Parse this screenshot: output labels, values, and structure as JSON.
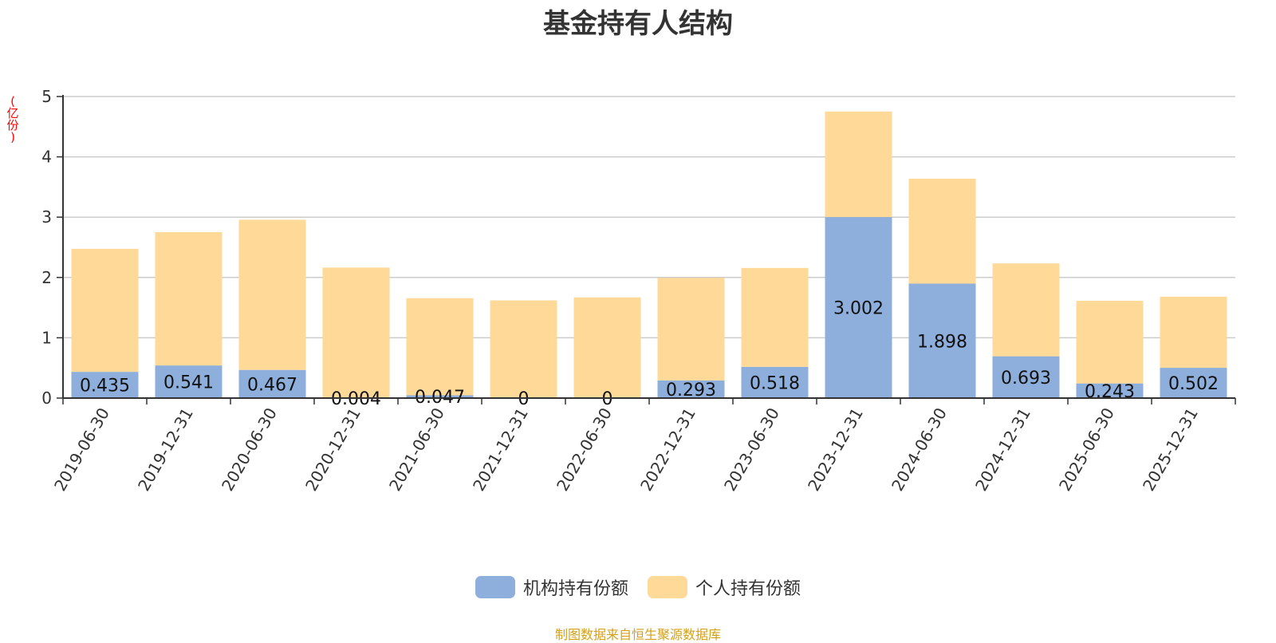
{
  "chart_data": {
    "type": "bar",
    "stacked": true,
    "title": "基金持有人结构",
    "ylabel": "(亿份)",
    "ylim": [
      0,
      5
    ],
    "yticks": [
      0,
      1,
      2,
      3,
      4,
      5
    ],
    "grid": true,
    "legend_position": "bottom",
    "categories": [
      "2019-06-30",
      "2019-12-31",
      "2020-06-30",
      "2020-12-31",
      "2021-06-30",
      "2021-12-31",
      "2022-06-30",
      "2022-12-31",
      "2023-06-30",
      "2023-12-31",
      "2024-06-30",
      "2024-12-31",
      "2025-06-30",
      "2025-12-31"
    ],
    "series": [
      {
        "name": "机构持有份额",
        "color": "#8eaedb",
        "values": [
          0.435,
          0.541,
          0.467,
          0.004,
          0.047,
          0,
          0,
          0.293,
          0.518,
          3.002,
          1.898,
          0.693,
          0.243,
          0.502
        ]
      },
      {
        "name": "个人持有份额",
        "color": "#fed998",
        "values": [
          2.04,
          2.21,
          2.49,
          2.16,
          1.61,
          1.62,
          1.67,
          1.7,
          1.64,
          1.75,
          1.74,
          1.54,
          1.37,
          1.18
        ]
      }
    ],
    "data_labels_series": 0
  },
  "source_note": "制图数据来自恒生聚源数据库"
}
